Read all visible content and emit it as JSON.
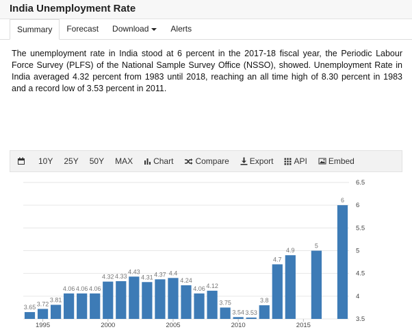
{
  "header": {
    "title": "India Unemployment Rate"
  },
  "tabs": [
    {
      "label": "Summary",
      "active": true
    },
    {
      "label": "Forecast",
      "active": false
    },
    {
      "label": "Download",
      "active": false,
      "dropdown": true
    },
    {
      "label": "Alerts",
      "active": false
    }
  ],
  "description": "The unemployment rate in India stood at 6 percent in the 2017-18 fiscal year, the Periodic Labour Force Survey (PLFS) of the National Sample Survey Office (NSSO), showed. Unemployment Rate in India averaged 4.32 percent from 1983 until 2018, reaching an all time high of 8.30 percent in 1983 and a record low of 3.53 percent in 2011.",
  "toolbar": {
    "items": [
      {
        "label": "",
        "icon": "calendar-icon"
      },
      {
        "label": "10Y"
      },
      {
        "label": "25Y"
      },
      {
        "label": "50Y"
      },
      {
        "label": "MAX"
      },
      {
        "label": "Chart",
        "icon": "bar-chart-icon"
      },
      {
        "label": "Compare",
        "icon": "shuffle-icon"
      },
      {
        "label": "Export",
        "icon": "download-icon"
      },
      {
        "label": "API",
        "icon": "grid-icon"
      },
      {
        "label": "Embed",
        "icon": "image-icon"
      }
    ]
  },
  "chart_data": {
    "type": "bar",
    "x": [
      1994,
      1995,
      1996,
      1997,
      1998,
      1999,
      2000,
      2001,
      2002,
      2003,
      2004,
      2005,
      2006,
      2007,
      2008,
      2009,
      2010,
      2011,
      2012,
      2013,
      2014,
      2016,
      2018
    ],
    "values": [
      3.65,
      3.72,
      3.81,
      4.06,
      4.06,
      4.06,
      4.32,
      4.33,
      4.43,
      4.31,
      4.37,
      4.4,
      4.24,
      4.06,
      4.12,
      3.75,
      3.54,
      3.53,
      3.8,
      4.7,
      4.9,
      5,
      6
    ],
    "labels": [
      "3.65",
      "3.72",
      "3.81",
      "4.06",
      "4.06",
      "4.06",
      "4.32",
      "4.33",
      "4.43",
      "4.31",
      "4.37",
      "4.4",
      "4.24",
      "4.06",
      "4.12",
      "3.75",
      "3.54",
      "3.53",
      "3.8",
      "4.7",
      "4.9",
      "5",
      "6"
    ],
    "ylim": [
      3.5,
      6.5
    ],
    "yticks": [
      "3.5",
      "4",
      "4.5",
      "5",
      "5.5",
      "6",
      "6.5"
    ],
    "xticks": [
      "1995",
      "2000",
      "2005",
      "2010",
      "2015"
    ],
    "grid": true,
    "bar_color": "#3d7bb6",
    "title": "",
    "xlabel": "",
    "ylabel": ""
  }
}
